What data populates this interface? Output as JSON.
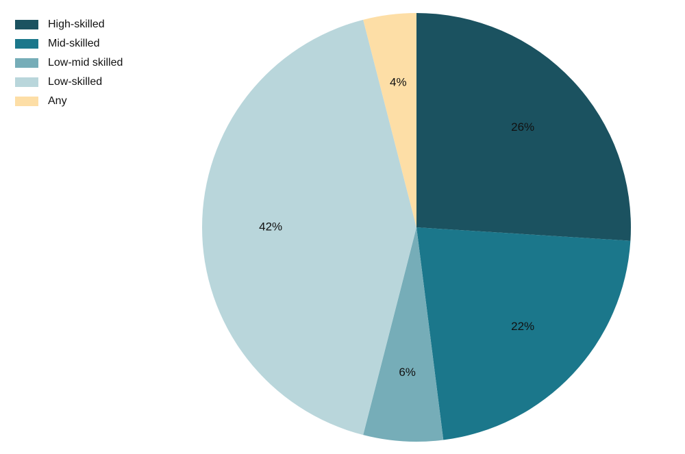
{
  "chart_data": {
    "type": "pie",
    "title": "",
    "legend_position": "top-left",
    "slices": [
      {
        "label": "High-skilled",
        "value": 26,
        "value_label": "26%",
        "color": "#1b5260"
      },
      {
        "label": "Mid-skilled",
        "value": 22,
        "value_label": "22%",
        "color": "#1b778b"
      },
      {
        "label": "Low-mid skilled",
        "value": 6,
        "value_label": "6%",
        "color": "#76adb8"
      },
      {
        "label": "Low-skilled",
        "value": 42,
        "value_label": "42%",
        "color": "#b9d6db"
      },
      {
        "label": "Any",
        "value": 4,
        "value_label": "4%",
        "color": "#fddea6"
      }
    ]
  }
}
